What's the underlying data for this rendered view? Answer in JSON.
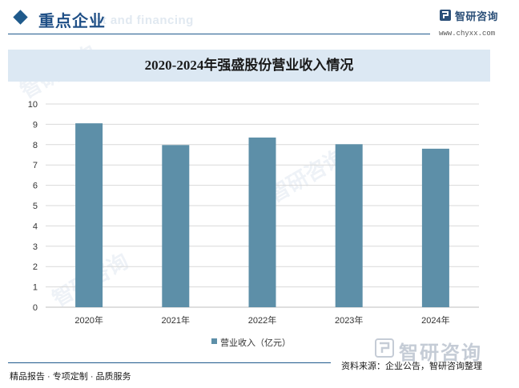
{
  "header": {
    "section_title": "重点企业",
    "section_subtitle": "nt and financing",
    "brand_name": "智研咨询",
    "brand_url": "www.chyxx.com"
  },
  "chart_data": {
    "type": "bar",
    "title": "2020-2024年强盛股份营业收入情况",
    "categories": [
      "2020年",
      "2021年",
      "2022年",
      "2023年",
      "2024年"
    ],
    "series": [
      {
        "name": "营业收入（亿元）",
        "values": [
          9.05,
          7.98,
          8.35,
          8.02,
          7.8
        ]
      }
    ],
    "ylim": [
      0,
      10
    ],
    "yticks": [
      0,
      1,
      2,
      3,
      4,
      5,
      6,
      7,
      8,
      9,
      10
    ],
    "xlabel": "",
    "ylabel": "",
    "grid": true,
    "legend": "bottom-center",
    "colors": {
      "bar": "#5d8fa8",
      "grid": "#d9d9d9",
      "axis": "#bfbfbf"
    }
  },
  "legend": {
    "label": "营业收入（亿元）"
  },
  "footer": {
    "logo_text": "智研咨询",
    "left_text": "精品报告 · 专项定制 · 品质服务",
    "source_text": "资料来源：企业公告，智研咨询整理"
  },
  "watermark": {
    "text": "智研咨询"
  }
}
